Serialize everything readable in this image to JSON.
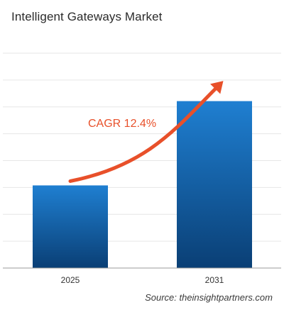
{
  "chart_data": {
    "type": "bar",
    "title": "Intelligent Gateways Market",
    "categories": [
      "2025",
      "2031"
    ],
    "values": [
      1.0,
      2.02
    ],
    "ylim": [
      0,
      2.6
    ],
    "xlabel": "",
    "ylabel": "",
    "grid": true,
    "annotation": {
      "label": "CAGR 12.4%",
      "type": "growth-arrow"
    }
  },
  "colors": {
    "bar_top": "#1f7fd1",
    "bar_bottom": "#0a3f75",
    "arrow": "#e8502a",
    "annotation_text": "#e8502a",
    "grid": "#e6e6e6",
    "axis": "#9a9a9a"
  },
  "source": "Source: theinsightpartners.com"
}
